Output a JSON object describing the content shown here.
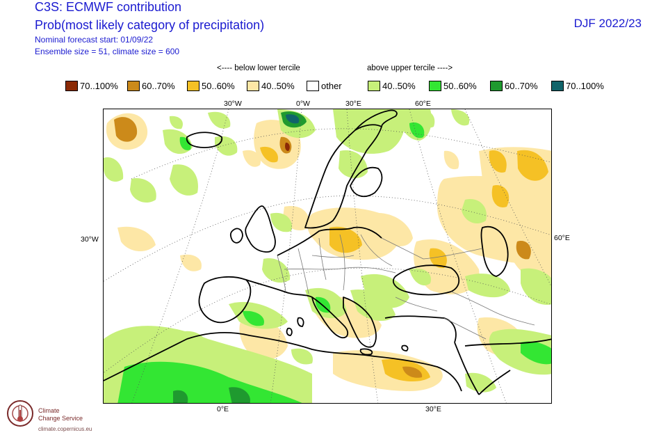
{
  "header": {
    "title": "C3S: ECMWF contribution",
    "subtitle": "Prob(most likely category of precipitation)",
    "forecast_start": "Nominal forecast start: 01/09/22",
    "ensemble": "Ensemble size = 51, climate size = 600",
    "period": "DJF 2022/23"
  },
  "legend": {
    "below_label": "<---- below lower tercile",
    "above_label": "above upper tercile ---->",
    "items": [
      {
        "label": "70..100%",
        "color": "#8b2a05"
      },
      {
        "label": "60..70%",
        "color": "#cc8a1a"
      },
      {
        "label": "50..60%",
        "color": "#f5c125"
      },
      {
        "label": "40..50%",
        "color": "#fde7a6"
      },
      {
        "label": "other",
        "color": "#ffffff"
      },
      {
        "label": "40..50%",
        "color": "#c7f07a"
      },
      {
        "label": "50..60%",
        "color": "#33e633"
      },
      {
        "label": "60..70%",
        "color": "#1f9a2f"
      },
      {
        "label": "70..100%",
        "color": "#11646a"
      }
    ]
  },
  "map": {
    "lon_labels_top": [
      "30°W",
      "0°W",
      "30°E",
      "60°E"
    ],
    "lon_labels_bottom": [
      "0°E",
      "30°E"
    ],
    "left_label": "30°W",
    "right_label": "60°E"
  },
  "footer": {
    "org_line1": "Climate",
    "org_line2": "Change Service",
    "url": "climate.copernicus.eu"
  }
}
